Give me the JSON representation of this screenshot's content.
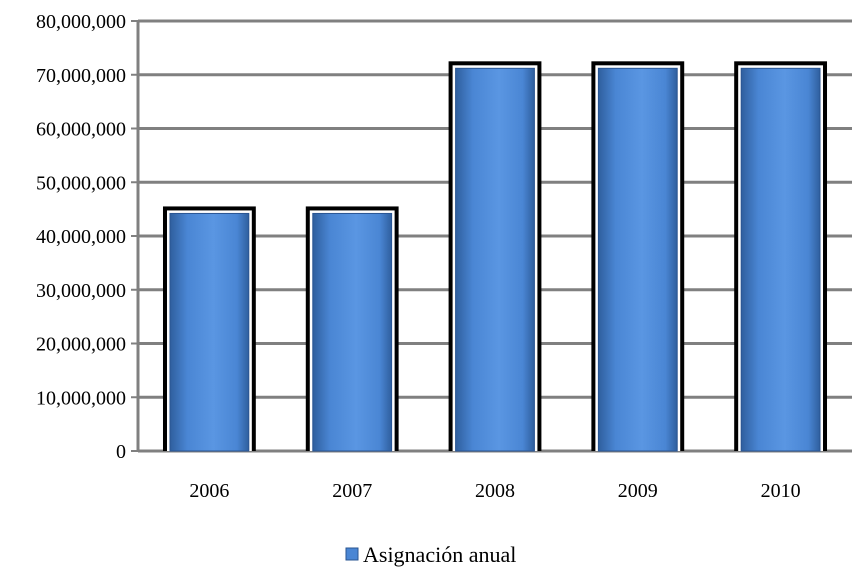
{
  "chart_data": {
    "type": "bar",
    "title": "",
    "xlabel": "",
    "ylabel": "",
    "categories": [
      "2006",
      "2007",
      "2008",
      "2009",
      "2010"
    ],
    "series": [
      {
        "name": "Asignación anual",
        "values": [
          45500000,
          45500000,
          72500000,
          72500000,
          72500000
        ]
      }
    ],
    "ylim": [
      0,
      80000000
    ],
    "yticks": [
      0,
      10000000,
      20000000,
      30000000,
      40000000,
      50000000,
      60000000,
      70000000,
      80000000
    ],
    "ytick_labels": [
      "0",
      "10,000,000",
      "20,000,000",
      "30,000,000",
      "40,000,000",
      "50,000,000",
      "60,000,000",
      "70,000,000",
      "80,000,000"
    ],
    "grid": true,
    "legend_position": "bottom",
    "bar_color": "#4a86d4",
    "bar_border_color": "#000000",
    "grid_color": "#808080"
  }
}
